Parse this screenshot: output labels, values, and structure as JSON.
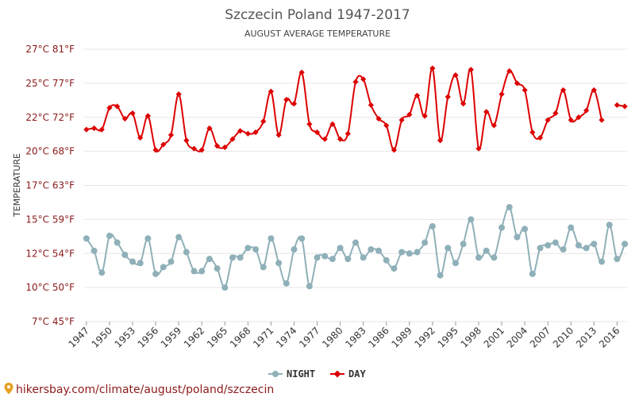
{
  "chart_data": {
    "type": "line",
    "title": "Szczecin Poland 1947-2017",
    "subtitle": "AUGUST AVERAGE TEMPERATURE",
    "ylabel": "TEMPERATURE",
    "ylim": [
      7.5,
      27.5
    ],
    "y_ticks": [
      {
        "value": 7.5,
        "label": "7°C 45°F"
      },
      {
        "value": 10,
        "label": "10°C 50°F"
      },
      {
        "value": 12.5,
        "label": "12°C 54°F"
      },
      {
        "value": 15,
        "label": "15°C 59°F"
      },
      {
        "value": 17.5,
        "label": "17°C 63°F"
      },
      {
        "value": 20,
        "label": "20°C 68°F"
      },
      {
        "value": 22.5,
        "label": "22°C 72°F"
      },
      {
        "value": 25,
        "label": "25°C 77°F"
      },
      {
        "value": 27.5,
        "label": "27°C 81°F"
      }
    ],
    "x_ticks": [
      "1947",
      "1950",
      "1953",
      "1956",
      "1959",
      "1962",
      "1965",
      "1968",
      "1971",
      "1974",
      "1977",
      "1980",
      "1983",
      "1986",
      "1989",
      "1992",
      "1995",
      "1998",
      "2001",
      "2004",
      "2007",
      "2010",
      "2013",
      "2016"
    ],
    "x": [
      1947,
      1948,
      1949,
      1950,
      1951,
      1952,
      1953,
      1954,
      1955,
      1956,
      1957,
      1958,
      1959,
      1960,
      1961,
      1962,
      1963,
      1964,
      1965,
      1966,
      1967,
      1968,
      1969,
      1970,
      1971,
      1972,
      1973,
      1974,
      1975,
      1976,
      1977,
      1978,
      1979,
      1980,
      1981,
      1982,
      1983,
      1984,
      1985,
      1986,
      1987,
      1988,
      1989,
      1990,
      1991,
      1992,
      1993,
      1994,
      1995,
      1996,
      1997,
      1998,
      1999,
      2000,
      2001,
      2002,
      2003,
      2004,
      2005,
      2006,
      2007,
      2008,
      2009,
      2010,
      2011,
      2012,
      2013,
      2014,
      2015,
      2016,
      2017
    ],
    "series": [
      {
        "name": "DAY",
        "color": "#dd0000",
        "marker": "diamond",
        "values": [
          21.6,
          21.7,
          21.6,
          23.2,
          23.3,
          22.4,
          22.8,
          21.0,
          22.6,
          20.1,
          20.5,
          21.2,
          24.2,
          20.8,
          20.2,
          20.1,
          21.7,
          20.4,
          20.3,
          20.9,
          21.5,
          21.3,
          21.4,
          22.2,
          24.4,
          21.2,
          23.8,
          23.5,
          25.8,
          22.0,
          21.4,
          20.9,
          22.0,
          20.9,
          21.3,
          25.1,
          25.3,
          23.4,
          22.4,
          21.9,
          20.1,
          22.3,
          22.7,
          24.1,
          22.6,
          26.1,
          20.8,
          24.0,
          25.6,
          23.5,
          26.0,
          20.2,
          22.9,
          21.9,
          24.2,
          25.9,
          25.0,
          24.5,
          21.4,
          21.0,
          22.3,
          22.8,
          24.5,
          22.3,
          22.5,
          23.0,
          24.5,
          22.3,
          null,
          23.4,
          23.3
        ]
      },
      {
        "name": "NIGHT",
        "color": "#8fb0b8",
        "marker": "circle",
        "values": [
          13.6,
          12.7,
          11.1,
          13.8,
          13.3,
          12.4,
          11.9,
          11.8,
          13.6,
          11.0,
          11.5,
          11.9,
          13.7,
          12.6,
          11.2,
          11.2,
          12.1,
          11.4,
          10.0,
          12.2,
          12.2,
          12.9,
          12.8,
          11.5,
          13.6,
          11.8,
          10.3,
          12.8,
          13.6,
          10.1,
          12.2,
          12.3,
          12.1,
          12.9,
          12.1,
          13.3,
          12.2,
          12.8,
          12.7,
          12.0,
          11.4,
          12.6,
          12.5,
          12.6,
          13.3,
          14.5,
          10.9,
          12.9,
          11.8,
          13.2,
          15.0,
          12.2,
          12.7,
          12.2,
          14.4,
          15.9,
          13.7,
          14.3,
          11.0,
          12.9,
          13.1,
          13.3,
          12.8,
          14.4,
          13.1,
          12.9,
          13.2,
          11.9,
          14.6,
          12.1,
          13.2
        ]
      }
    ],
    "legend": {
      "placement": "bottom-center",
      "items": [
        "NIGHT",
        "DAY"
      ]
    },
    "grid": true
  },
  "footer": {
    "url_text": "hikersbay.com/climate/august/poland/szczecin"
  }
}
